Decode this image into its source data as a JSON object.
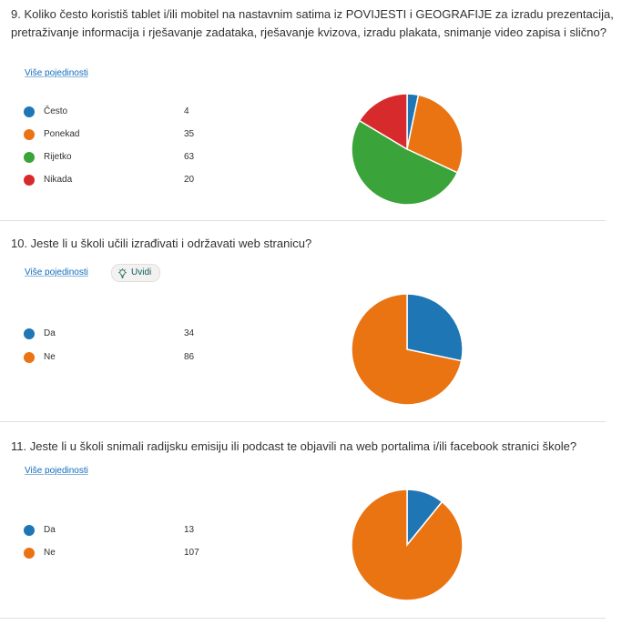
{
  "more_details_label": "Više pojedinosti",
  "insights_label": "Uvidi",
  "questions": [
    {
      "title": "9.  Koliko često koristiš tablet i/ili mobitel na nastavnim satima iz POVIJESTI i GEOGRAFIJE za izradu prezentacija, pretraživanje informacija i rješavanje zadataka, rješavanje kvizova, izradu plakata, snimanje video zapisa i slično?",
      "options": [
        {
          "label": "Često",
          "value": 4,
          "color": "#1e76b4"
        },
        {
          "label": "Ponekad",
          "value": 35,
          "color": "#ea7312"
        },
        {
          "label": "Rijetko",
          "value": 63,
          "color": "#3aa33a"
        },
        {
          "label": "Nikada",
          "value": 20,
          "color": "#d72a2c"
        }
      ]
    },
    {
      "title": "10.  Jeste li u školi učili izrađivati i održavati web stranicu?",
      "options": [
        {
          "label": "Da",
          "value": 34,
          "color": "#1e76b4"
        },
        {
          "label": "Ne",
          "value": 86,
          "color": "#ea7312"
        }
      ]
    },
    {
      "title": "11.  Jeste li u školi snimali radijsku emisiju ili podcast te objavili na web portalima i/ili facebook stranici škole?",
      "options": [
        {
          "label": "Da",
          "value": 13,
          "color": "#1e76b4"
        },
        {
          "label": "Ne",
          "value": 107,
          "color": "#ea7312"
        }
      ]
    }
  ],
  "chart_data": [
    {
      "type": "pie",
      "categories": [
        "Često",
        "Ponekad",
        "Rijetko",
        "Nikada"
      ],
      "values": [
        4,
        35,
        63,
        20
      ]
    },
    {
      "type": "pie",
      "categories": [
        "Da",
        "Ne"
      ],
      "values": [
        34,
        86
      ]
    },
    {
      "type": "pie",
      "categories": [
        "Da",
        "Ne"
      ],
      "values": [
        13,
        107
      ]
    }
  ]
}
